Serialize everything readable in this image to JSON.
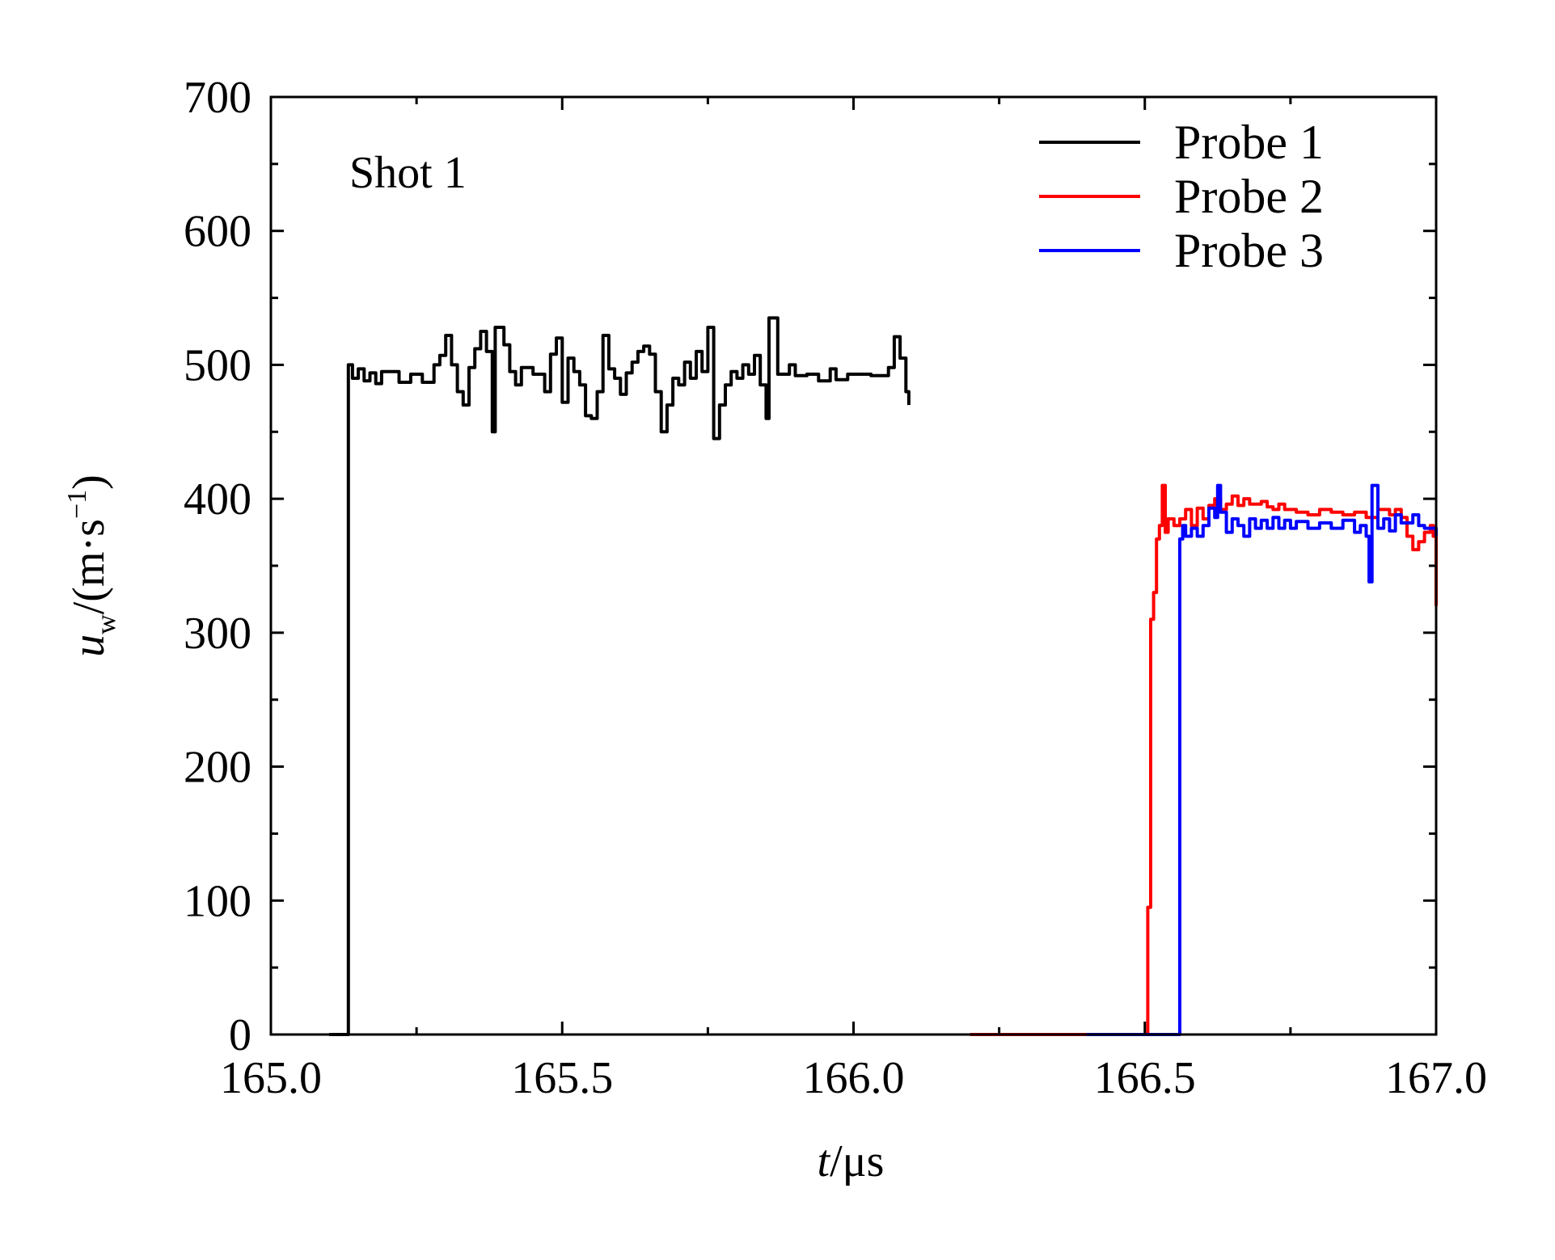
{
  "chart_data": {
    "type": "line",
    "title": "",
    "annotation": "Shot 1",
    "xlabel": {
      "italic": "t",
      "rest": "/μs"
    },
    "ylabel": {
      "italic": "u",
      "sub": "w",
      "rest": "/(m·s",
      "sup": "−1",
      "close": ")"
    },
    "xlim": [
      165.0,
      167.0
    ],
    "ylim": [
      0,
      700
    ],
    "xticks": [
      165.0,
      165.5,
      166.0,
      166.5,
      167.0
    ],
    "xtick_labels": [
      "165.0",
      "165.5",
      "166.0",
      "166.5",
      "167.0"
    ],
    "yticks": [
      0,
      100,
      200,
      300,
      400,
      500,
      600,
      700
    ],
    "ytick_labels": [
      "0",
      "100",
      "200",
      "300",
      "400",
      "500",
      "600",
      "700"
    ],
    "legend_position": "top-right",
    "grid": false,
    "series": [
      {
        "name": "Probe 1",
        "color": "#000000",
        "points": [
          [
            165.1,
            0
          ],
          [
            165.13,
            0
          ],
          [
            165.133,
            500
          ],
          [
            165.14,
            490
          ],
          [
            165.15,
            497
          ],
          [
            165.16,
            488
          ],
          [
            165.17,
            494
          ],
          [
            165.18,
            486
          ],
          [
            165.19,
            495
          ],
          [
            165.21,
            495
          ],
          [
            165.22,
            487
          ],
          [
            165.24,
            493
          ],
          [
            165.26,
            487
          ],
          [
            165.28,
            500
          ],
          [
            165.29,
            507
          ],
          [
            165.3,
            522
          ],
          [
            165.31,
            500
          ],
          [
            165.32,
            480
          ],
          [
            165.33,
            470
          ],
          [
            165.34,
            498
          ],
          [
            165.35,
            512
          ],
          [
            165.36,
            525
          ],
          [
            165.37,
            510
          ],
          [
            165.38,
            450
          ],
          [
            165.385,
            528
          ],
          [
            165.4,
            515
          ],
          [
            165.41,
            495
          ],
          [
            165.42,
            485
          ],
          [
            165.43,
            498
          ],
          [
            165.45,
            493
          ],
          [
            165.47,
            480
          ],
          [
            165.48,
            508
          ],
          [
            165.49,
            520
          ],
          [
            165.5,
            472
          ],
          [
            165.51,
            505
          ],
          [
            165.52,
            495
          ],
          [
            165.53,
            485
          ],
          [
            165.54,
            462
          ],
          [
            165.55,
            460
          ],
          [
            165.56,
            480
          ],
          [
            165.57,
            522
          ],
          [
            165.58,
            497
          ],
          [
            165.59,
            490
          ],
          [
            165.6,
            478
          ],
          [
            165.61,
            494
          ],
          [
            165.62,
            502
          ],
          [
            165.63,
            510
          ],
          [
            165.64,
            514
          ],
          [
            165.65,
            508
          ],
          [
            165.66,
            480
          ],
          [
            165.67,
            450
          ],
          [
            165.68,
            470
          ],
          [
            165.69,
            490
          ],
          [
            165.7,
            485
          ],
          [
            165.71,
            502
          ],
          [
            165.72,
            490
          ],
          [
            165.73,
            510
          ],
          [
            165.74,
            495
          ],
          [
            165.75,
            528
          ],
          [
            165.76,
            445
          ],
          [
            165.77,
            470
          ],
          [
            165.78,
            485
          ],
          [
            165.79,
            495
          ],
          [
            165.8,
            490
          ],
          [
            165.81,
            500
          ],
          [
            165.82,
            493
          ],
          [
            165.83,
            507
          ],
          [
            165.84,
            485
          ],
          [
            165.85,
            460
          ],
          [
            165.855,
            535
          ],
          [
            165.87,
            493
          ],
          [
            165.89,
            500
          ],
          [
            165.9,
            492
          ],
          [
            165.92,
            493
          ],
          [
            165.94,
            488
          ],
          [
            165.96,
            497
          ],
          [
            165.97,
            489
          ],
          [
            165.99,
            493
          ],
          [
            166.01,
            493
          ],
          [
            166.03,
            492
          ],
          [
            166.05,
            492
          ],
          [
            166.06,
            498
          ],
          [
            166.07,
            521
          ],
          [
            166.08,
            505
          ],
          [
            166.09,
            480
          ],
          [
            166.095,
            470
          ]
        ]
      },
      {
        "name": "Probe 2",
        "color": "#ff0000",
        "points": [
          [
            166.2,
            0
          ],
          [
            166.5,
            0
          ],
          [
            166.505,
            95
          ],
          [
            166.51,
            310
          ],
          [
            166.515,
            330
          ],
          [
            166.52,
            370
          ],
          [
            166.525,
            380
          ],
          [
            166.53,
            410
          ],
          [
            166.535,
            375
          ],
          [
            166.54,
            385
          ],
          [
            166.55,
            380
          ],
          [
            166.56,
            385
          ],
          [
            166.57,
            392
          ],
          [
            166.58,
            380
          ],
          [
            166.59,
            393
          ],
          [
            166.6,
            385
          ],
          [
            166.61,
            395
          ],
          [
            166.62,
            400
          ],
          [
            166.63,
            392
          ],
          [
            166.64,
            396
          ],
          [
            166.65,
            402
          ],
          [
            166.66,
            395
          ],
          [
            166.67,
            400
          ],
          [
            166.68,
            396
          ],
          [
            166.69,
            396
          ],
          [
            166.7,
            398
          ],
          [
            166.71,
            394
          ],
          [
            166.72,
            392
          ],
          [
            166.73,
            396
          ],
          [
            166.74,
            392
          ],
          [
            166.76,
            390
          ],
          [
            166.78,
            388
          ],
          [
            166.8,
            392
          ],
          [
            166.82,
            390
          ],
          [
            166.84,
            388
          ],
          [
            166.86,
            390
          ],
          [
            166.88,
            386
          ],
          [
            166.9,
            392
          ],
          [
            166.92,
            388
          ],
          [
            166.93,
            392
          ],
          [
            166.94,
            386
          ],
          [
            166.95,
            372
          ],
          [
            166.96,
            362
          ],
          [
            166.97,
            368
          ],
          [
            166.98,
            375
          ],
          [
            166.99,
            380
          ],
          [
            166.995,
            372
          ],
          [
            167.0,
            320
          ]
        ]
      },
      {
        "name": "Probe 3",
        "color": "#0000ff",
        "points": [
          [
            166.4,
            0
          ],
          [
            166.555,
            0
          ],
          [
            166.56,
            370
          ],
          [
            166.565,
            380
          ],
          [
            166.57,
            372
          ],
          [
            166.58,
            378
          ],
          [
            166.59,
            372
          ],
          [
            166.6,
            380
          ],
          [
            166.61,
            393
          ],
          [
            166.62,
            386
          ],
          [
            166.625,
            410
          ],
          [
            166.63,
            390
          ],
          [
            166.64,
            375
          ],
          [
            166.65,
            385
          ],
          [
            166.66,
            380
          ],
          [
            166.67,
            372
          ],
          [
            166.68,
            385
          ],
          [
            166.69,
            378
          ],
          [
            166.7,
            384
          ],
          [
            166.71,
            378
          ],
          [
            166.72,
            386
          ],
          [
            166.73,
            378
          ],
          [
            166.74,
            384
          ],
          [
            166.75,
            378
          ],
          [
            166.76,
            383
          ],
          [
            166.78,
            378
          ],
          [
            166.8,
            382
          ],
          [
            166.82,
            378
          ],
          [
            166.84,
            384
          ],
          [
            166.86,
            375
          ],
          [
            166.87,
            380
          ],
          [
            166.88,
            372
          ],
          [
            166.885,
            338
          ],
          [
            166.89,
            410
          ],
          [
            166.9,
            378
          ],
          [
            166.91,
            385
          ],
          [
            166.92,
            376
          ],
          [
            166.93,
            388
          ],
          [
            166.94,
            382
          ],
          [
            166.96,
            388
          ],
          [
            166.97,
            380
          ],
          [
            166.98,
            378
          ],
          [
            167.0,
            372
          ]
        ]
      }
    ]
  }
}
